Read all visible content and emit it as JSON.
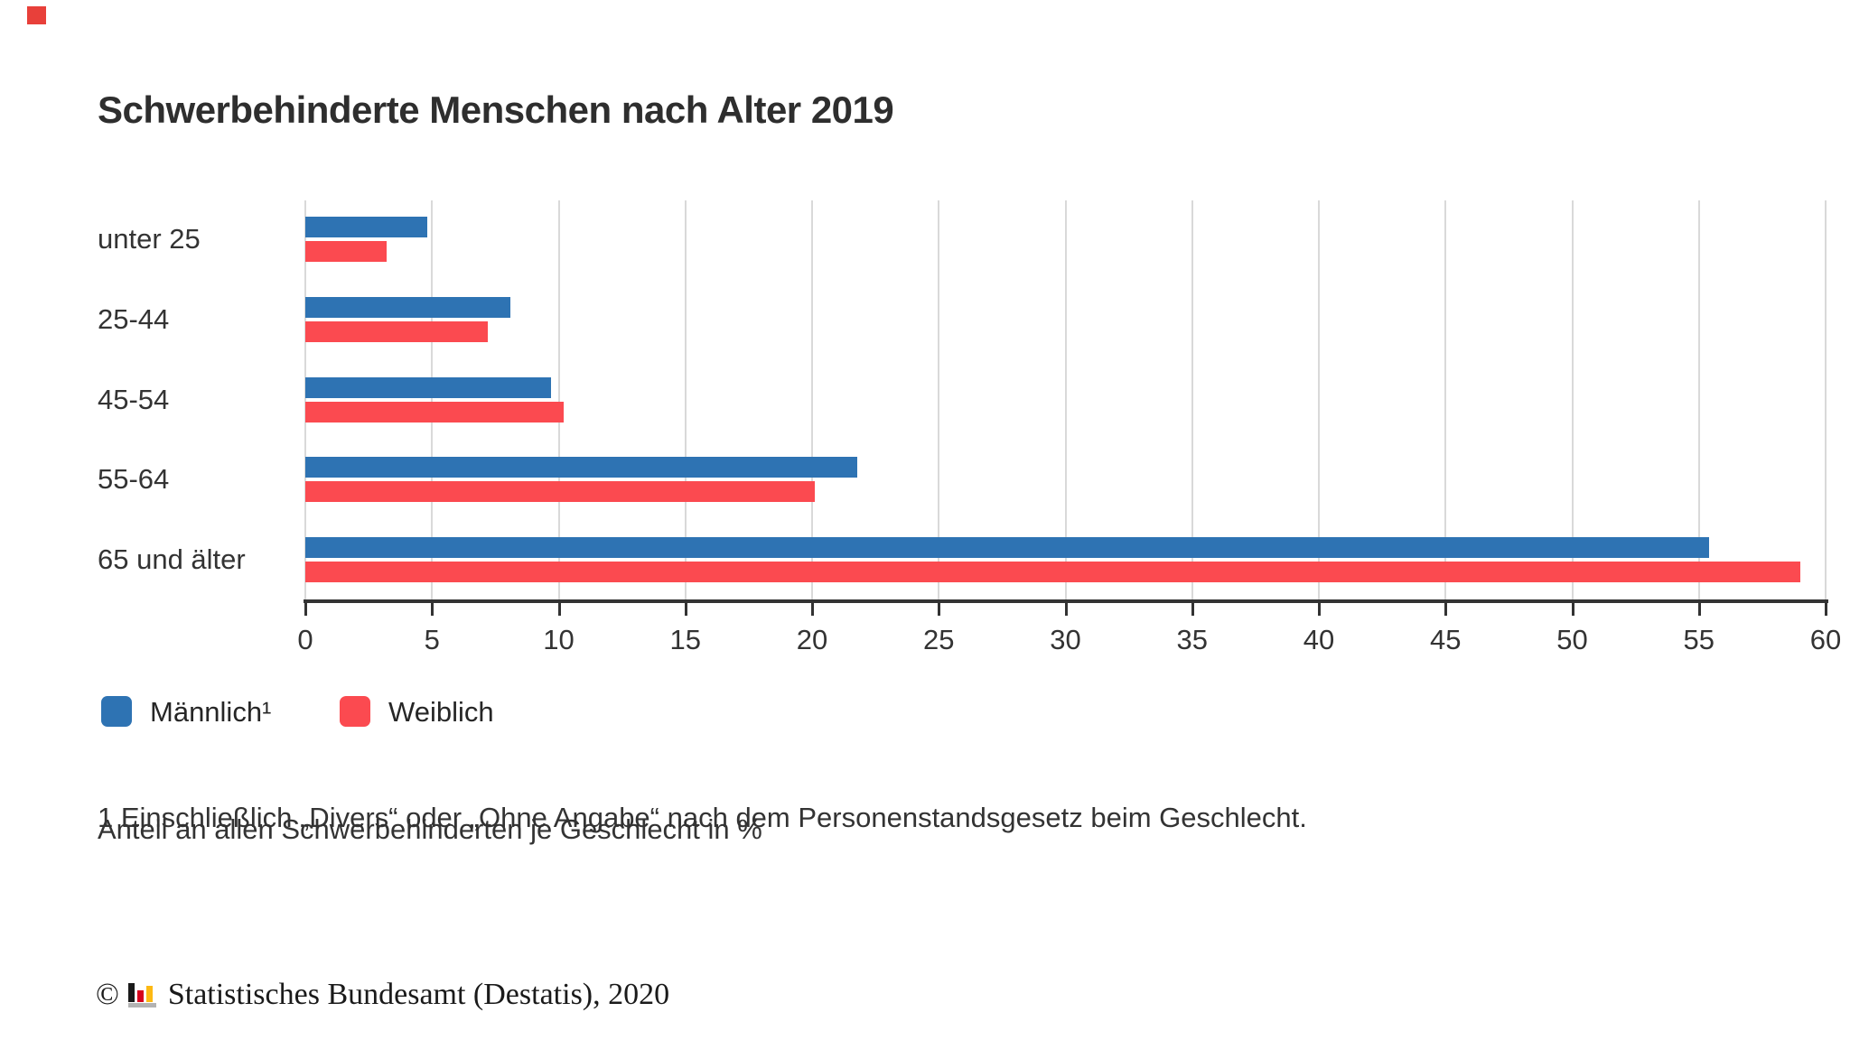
{
  "chart_data": {
    "type": "bar",
    "orientation": "horizontal",
    "title": "Schwerbehinderte Menschen nach Alter 2019",
    "categories": [
      "unter 25",
      "25-44",
      "45-54",
      "55-64",
      "65 und älter"
    ],
    "series": [
      {
        "name": "Männlich¹",
        "color": "#2e73b3",
        "values": [
          4.8,
          8.1,
          9.7,
          21.8,
          55.4
        ]
      },
      {
        "name": "Weiblich",
        "color": "#fb4a50",
        "values": [
          3.2,
          7.2,
          10.2,
          20.1,
          59.0
        ]
      }
    ],
    "x_ticks": [
      0,
      5,
      10,
      15,
      20,
      25,
      30,
      35,
      40,
      45,
      50,
      55,
      60
    ],
    "xlim": [
      0,
      60
    ],
    "xlabel": "",
    "ylabel": "",
    "value_unit": "Anteil an allen Schwerbehinderten je Geschlecht in %",
    "grid": true,
    "legend_position": "bottom-left"
  },
  "legend": {
    "items": [
      {
        "label": "Männlich¹",
        "color": "#2e73b3"
      },
      {
        "label": "Weiblich",
        "color": "#fb4a50"
      }
    ]
  },
  "footnotes": {
    "line1": "1 Einschließlich „Divers“ oder „Ohne Angabe“ nach dem Personenstandsgesetz beim Geschlecht.",
    "line2": "Anteil an allen Schwerbehinderten je Geschlecht in %"
  },
  "footer": {
    "copyright_symbol": "©",
    "logo_icon": "destatis-mini-bar-chart-icon",
    "text": "Statistisches Bundesamt (Destatis), 2020"
  },
  "colors": {
    "male_bar": "#2e73b3",
    "female_bar": "#fb4a50",
    "gridline": "#d9d9d9",
    "axis": "#333333",
    "text": "#333333",
    "title_text": "#2e2e2e",
    "corner_marker": "#e8403a",
    "logo_black": "#1a1a1a",
    "logo_red": "#d6001c",
    "logo_gold": "#fdb913",
    "logo_base": "#b3b3b3"
  }
}
